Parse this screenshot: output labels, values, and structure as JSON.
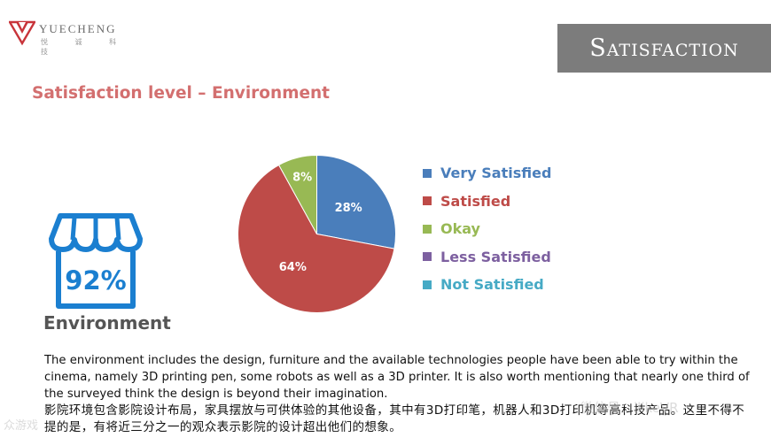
{
  "logo": {
    "name": "YUECHENG",
    "sub": "悦 诚 科 技"
  },
  "banner": {
    "text": "Satisfaction"
  },
  "title": "Satisfaction level – Environment",
  "metric": {
    "value": "92%",
    "label": "Environment"
  },
  "chart_data": {
    "type": "pie",
    "slices": [
      {
        "label": "Very Satisfied",
        "value": 28,
        "display": "28%",
        "color": "#4a7ebb"
      },
      {
        "label": "Satisfied",
        "value": 64,
        "display": "64%",
        "color": "#be4b48"
      },
      {
        "label": "Okay",
        "value": 8,
        "display": "8%",
        "color": "#98b954"
      },
      {
        "label": "Less Satisfied",
        "value": 0,
        "display": "",
        "color": "#7d60a0"
      },
      {
        "label": "Not Satisfied",
        "value": 0,
        "display": "",
        "color": "#46aac5"
      }
    ],
    "legend_position": "right"
  },
  "legend": {
    "items": [
      {
        "label": "Very Satisfied",
        "color": "#4a7ebb"
      },
      {
        "label": "Satisfied",
        "color": "#be4b48"
      },
      {
        "label": "Okay",
        "color": "#98b954"
      },
      {
        "label": "Less Satisfied",
        "color": "#7d60a0"
      },
      {
        "label": "Not Satisfied",
        "color": "#46aac5"
      }
    ]
  },
  "description": {
    "en": "The environment includes the design, furniture and the available technologies people have been able to try within the cinema, namely 3D printing pen, some robots as well as a 3D printer. It is also worth mentioning that nearly one third of the surveyed think the design is beyond their imagination.",
    "zh": "影院环境包含影院设计布局，家具摆放与可供体验的其他设备，其中有3D打印笔，机器人和3D打印机等高科技产品。这里不得不提的是，有将近三分之一的观众表示影院的设计超出他们的想象。"
  },
  "watermark": {
    "text": "微信号：ilikeVR",
    "left_text": "众游戏"
  },
  "colors": {
    "title": "#d36f6f",
    "accent_blue": "#1b7fd0",
    "banner": "#7c7c7c",
    "logo_red": "#c8343a"
  },
  "icons": {
    "store": "store-icon",
    "logo": "yuecheng-logo-icon"
  }
}
